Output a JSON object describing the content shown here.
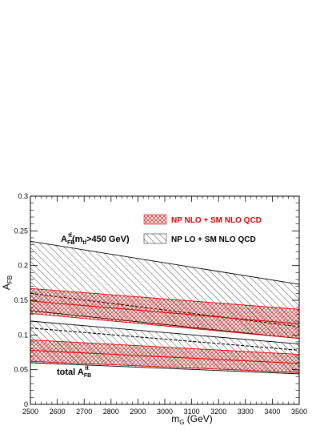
{
  "chart_data": {
    "type": "area",
    "xlabel_main": "m",
    "xlabel_sub": "G",
    "xlabel_unit": " (GeV)",
    "ylabel_main": "A",
    "ylabel_sub": "FB",
    "xlim": [
      2500,
      3500
    ],
    "ylim": [
      0,
      0.3
    ],
    "x_ticks": [
      "2500",
      "2600",
      "2700",
      "2800",
      "2900",
      "3000",
      "3100",
      "3200",
      "3300",
      "3400",
      "3500"
    ],
    "y_ticks": [
      "0",
      "0.05",
      "0.1",
      "0.15",
      "0.2",
      "0.25",
      "0.3"
    ],
    "grid": false,
    "legend_position": "top-right",
    "x": [
      2500,
      3500
    ],
    "series": [
      {
        "name": "NP NLO + SM NLO QCD",
        "color": "#dd0000",
        "region": "mtt>450",
        "lower": [
          0.131,
          0.095
        ],
        "upper": [
          0.167,
          0.137
        ],
        "central": [
          0.149,
          0.116
        ]
      },
      {
        "name": "NP LO + SM NLO QCD",
        "color": "#000000",
        "region": "mtt>450",
        "lower": [
          0.135,
          0.095
        ],
        "upper": [
          0.235,
          0.173
        ],
        "central": [
          0.16,
          0.112
        ]
      },
      {
        "name": "NP NLO + SM NLO QCD",
        "color": "#dd0000",
        "region": "total",
        "lower": [
          0.062,
          0.046
        ],
        "upper": [
          0.093,
          0.072
        ],
        "central": [
          0.078,
          0.059
        ]
      },
      {
        "name": "NP LO + SM NLO QCD",
        "color": "#000000",
        "region": "total",
        "lower": [
          0.06,
          0.044
        ],
        "upper": [
          0.12,
          0.087
        ],
        "central": [
          0.11,
          0.078
        ]
      }
    ],
    "annotations": [
      {
        "main": "A",
        "sup": "tt̄",
        "sub": "FB",
        "rest": "(m",
        "rest_sub": "tt̄",
        "tail": ">450 GeV)"
      },
      {
        "main": "total A",
        "sup": "tt̄",
        "sub": "FB"
      }
    ],
    "legend": [
      {
        "label": "NP NLO + SM NLO QCD",
        "color": "#dd0000"
      },
      {
        "label": "NP LO + SM NLO QCD",
        "color": "#000000"
      }
    ]
  }
}
